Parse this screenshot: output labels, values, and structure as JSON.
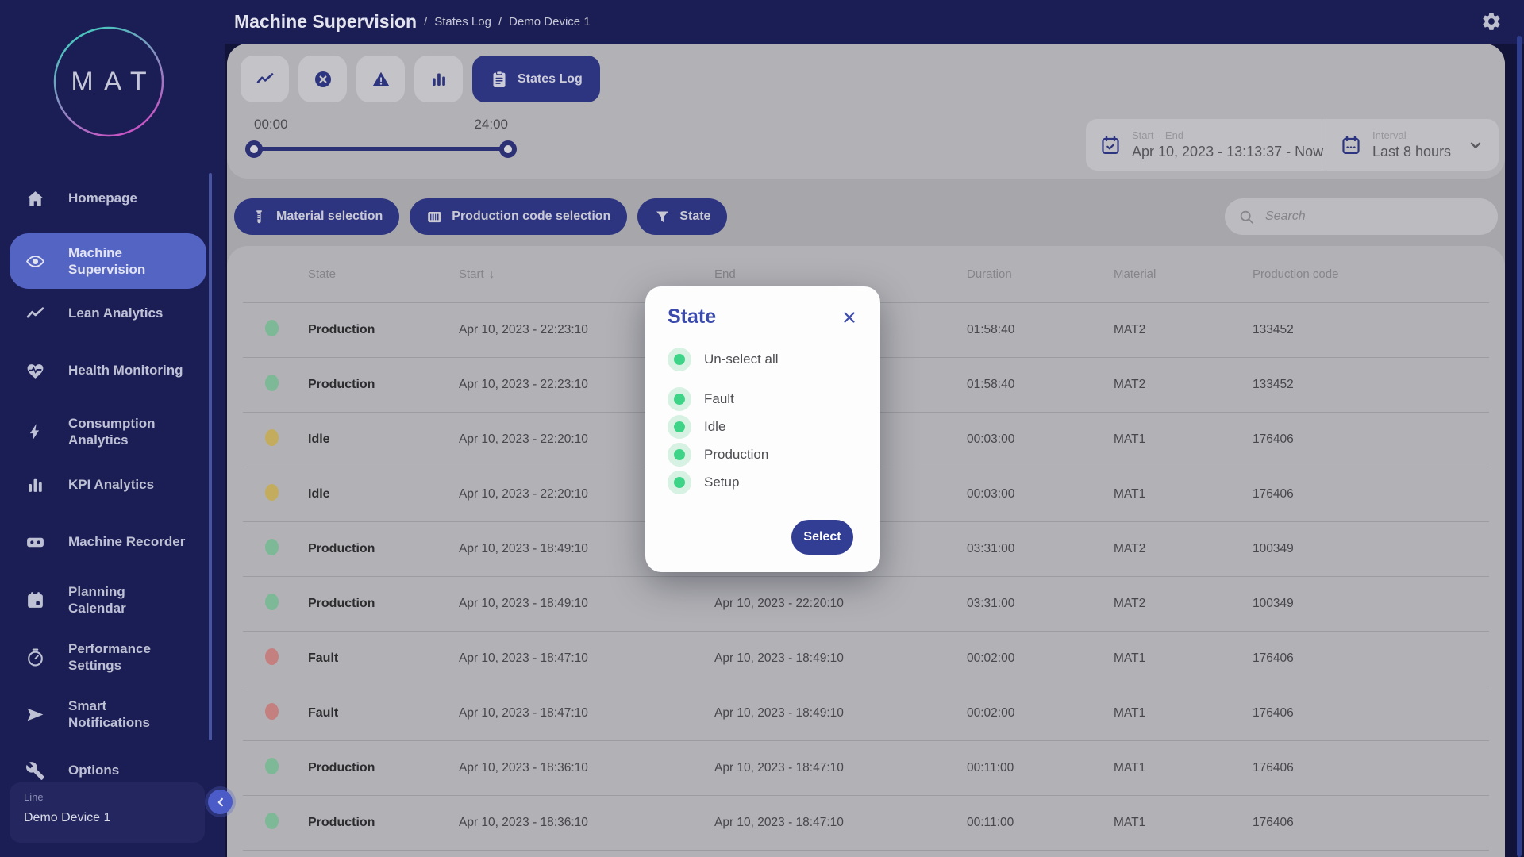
{
  "app": {
    "title": "Machine Supervision",
    "breadcrumb_separator": "/",
    "breadcrumbs": [
      "States Log",
      "Demo Device 1"
    ],
    "settings_icon": "gear"
  },
  "sidebar": {
    "logo_text": "MAT",
    "items": [
      {
        "label": "Homepage",
        "icon": "home",
        "active": false,
        "two_line": false
      },
      {
        "label": "Machine Supervision",
        "icon": "eye",
        "active": true,
        "two_line": true
      },
      {
        "label": "Lean Analytics",
        "icon": "trend",
        "active": false,
        "two_line": false
      },
      {
        "label": "Health Monitoring",
        "icon": "heart",
        "active": false,
        "two_line": false
      },
      {
        "label": "Consumption Analytics",
        "icon": "bolt",
        "active": false,
        "two_line": true
      },
      {
        "label": "KPI Analytics",
        "icon": "bars",
        "active": false,
        "two_line": false
      },
      {
        "label": "Machine Recorder",
        "icon": "recorder",
        "active": false,
        "two_line": false
      },
      {
        "label": "Planning Calendar",
        "icon": "calendar",
        "active": false,
        "two_line": true
      },
      {
        "label": "Performance Settings",
        "icon": "gauge",
        "active": false,
        "two_line": true
      },
      {
        "label": "Smart Notifications",
        "icon": "send",
        "active": false,
        "two_line": true
      },
      {
        "label": "Options",
        "icon": "wrench",
        "active": false,
        "two_line": false
      }
    ],
    "device_card": {
      "label": "Line",
      "name": "Demo Device 1"
    },
    "collapse_icon": "chevron-left"
  },
  "tabs": {
    "items": [
      {
        "icon": "trend"
      },
      {
        "icon": "x-circle"
      },
      {
        "icon": "warning"
      },
      {
        "icon": "bars"
      }
    ],
    "active": {
      "icon": "clipboard",
      "label": "States Log"
    }
  },
  "time_slider": {
    "start": "00:00",
    "end": "24:00"
  },
  "date_range": {
    "label": "Start – End",
    "value": "Apr 10, 2023 - 13:13:37 - Now",
    "icon": "calendar-check"
  },
  "interval": {
    "label": "Interval",
    "value": "Last 8 hours",
    "icon": "calendar-dots",
    "chevron_icon": "chevron-down"
  },
  "filters": [
    {
      "label": "Material selection",
      "icon": "material"
    },
    {
      "label": "Production code selection",
      "icon": "barcode"
    },
    {
      "label": "State",
      "icon": "funnel"
    }
  ],
  "search": {
    "placeholder": "Search",
    "icon": "magnifier"
  },
  "table": {
    "columns": [
      "State",
      "Start",
      "End",
      "Duration",
      "Material",
      "Production code"
    ],
    "sorted_column": "Start",
    "sort_arrow": "↓",
    "state_colors": {
      "Production": "#7db897",
      "Idle": "#c3ac5e",
      "Fault": "#c47f7f"
    },
    "rows": [
      {
        "state": "Production",
        "start": "Apr 10, 2023 - 22:23:10",
        "end": "",
        "duration": "01:58:40",
        "material": "MAT2",
        "production_code": "133452"
      },
      {
        "state": "Production",
        "start": "Apr 10, 2023 - 22:23:10",
        "end": "",
        "duration": "01:58:40",
        "material": "MAT2",
        "production_code": "133452"
      },
      {
        "state": "Idle",
        "start": "Apr 10, 2023 - 22:20:10",
        "end": "",
        "duration": "00:03:00",
        "material": "MAT1",
        "production_code": "176406"
      },
      {
        "state": "Idle",
        "start": "Apr 10, 2023 - 22:20:10",
        "end": "",
        "duration": "00:03:00",
        "material": "MAT1",
        "production_code": "176406"
      },
      {
        "state": "Production",
        "start": "Apr 10, 2023 - 18:49:10",
        "end": "",
        "duration": "03:31:00",
        "material": "MAT2",
        "production_code": "100349"
      },
      {
        "state": "Production",
        "start": "Apr 10, 2023 - 18:49:10",
        "end": "Apr 10, 2023 - 22:20:10",
        "duration": "03:31:00",
        "material": "MAT2",
        "production_code": "100349"
      },
      {
        "state": "Fault",
        "start": "Apr 10, 2023 - 18:47:10",
        "end": "Apr 10, 2023 - 18:49:10",
        "duration": "00:02:00",
        "material": "MAT1",
        "production_code": "176406"
      },
      {
        "state": "Fault",
        "start": "Apr 10, 2023 - 18:47:10",
        "end": "Apr 10, 2023 - 18:49:10",
        "duration": "00:02:00",
        "material": "MAT1",
        "production_code": "176406"
      },
      {
        "state": "Production",
        "start": "Apr 10, 2023 - 18:36:10",
        "end": "Apr 10, 2023 - 18:47:10",
        "duration": "00:11:00",
        "material": "MAT1",
        "production_code": "176406"
      },
      {
        "state": "Production",
        "start": "Apr 10, 2023 - 18:36:10",
        "end": "Apr 10, 2023 - 18:47:10",
        "duration": "00:11:00",
        "material": "MAT1",
        "production_code": "176406"
      }
    ]
  },
  "modal": {
    "title": "State",
    "close_icon": "close",
    "unselect_label": "Un-select all",
    "options": [
      "Fault",
      "Idle",
      "Production",
      "Setup"
    ],
    "toggle_color": "#3ed487",
    "select_button": "Select"
  },
  "colors": {
    "accent_navy": "#2d3480",
    "active_item": "#5464c3",
    "modal_title": "#3b4aad"
  }
}
